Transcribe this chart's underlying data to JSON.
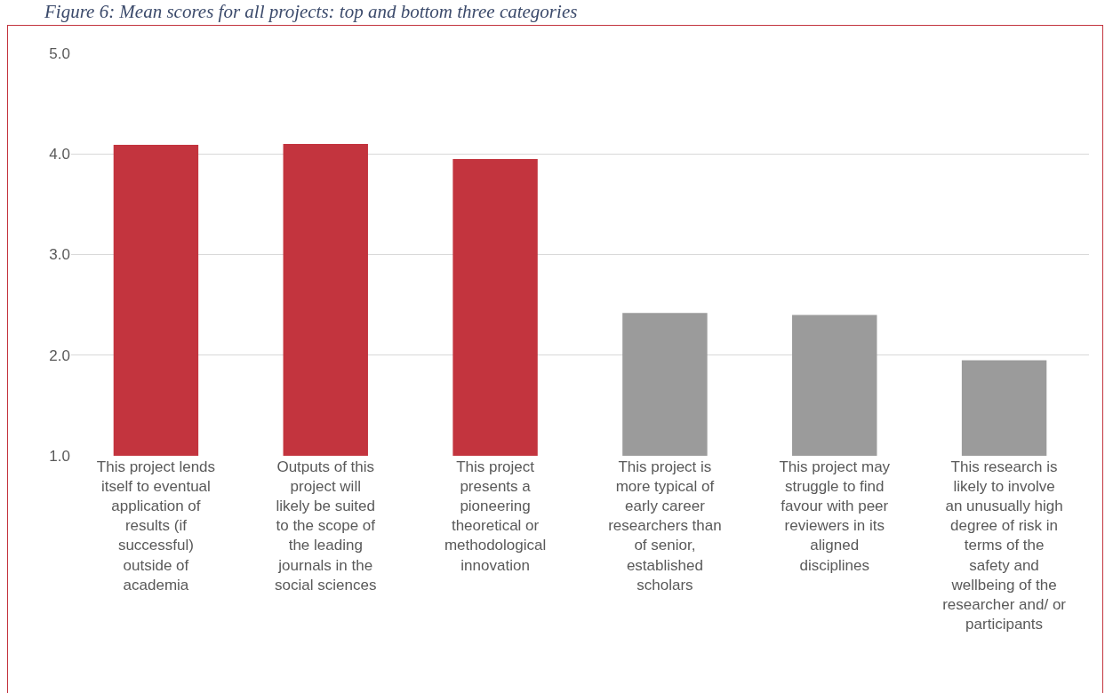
{
  "chart_data": {
    "type": "bar",
    "title": "Figure 6: Mean scores for all projects: top and bottom three categories",
    "categories": [
      "This project lends itself to eventual application of results (if successful) outside of academia",
      "Outputs of this project will likely be suited to the scope of the leading journals in the social sciences",
      "This project presents a pioneering theoretical or methodological innovation",
      "This project is more typical of early career researchers than of senior, established scholars",
      "This project may struggle to find favour with peer reviewers in its aligned disciplines",
      "This research is likely to involve an unusually high degree of risk in terms of the safety and wellbeing of the researcher and/ or participants"
    ],
    "values": [
      4.09,
      4.1,
      3.95,
      2.42,
      2.4,
      1.95
    ],
    "colors": [
      "#c3343e",
      "#c3343e",
      "#c3343e",
      "#9b9b9b",
      "#9b9b9b",
      "#9b9b9b"
    ],
    "ylim": [
      1,
      5
    ],
    "yticks": [
      {
        "value": 1,
        "label": "1.0"
      },
      {
        "value": 2,
        "label": "2.0"
      },
      {
        "value": 3,
        "label": "3.0"
      },
      {
        "value": 4,
        "label": "4.0"
      },
      {
        "value": 5,
        "label": "5.0"
      }
    ],
    "grid": "y"
  }
}
